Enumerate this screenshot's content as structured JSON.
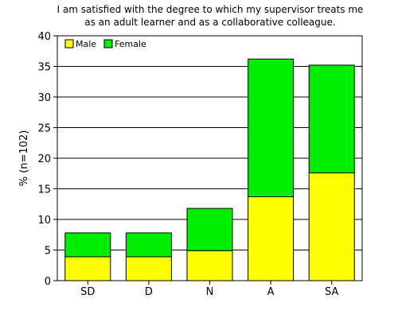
{
  "chart_data": {
    "type": "bar",
    "stacked": true,
    "title_lines": [
      "I am satisfied with the degree to which my supervisor treats me",
      "as an adult learner and as a collaborative colleague."
    ],
    "xlabel": "",
    "ylabel": "% (n=102)",
    "categories": [
      "SD",
      "D",
      "N",
      "A",
      "SA"
    ],
    "series": [
      {
        "name": "Male",
        "color": "#ffff00",
        "values": [
          3.9,
          3.9,
          4.9,
          13.7,
          17.6
        ]
      },
      {
        "name": "Female",
        "color": "#00ee00",
        "values": [
          3.9,
          3.9,
          6.9,
          22.5,
          17.6
        ]
      }
    ],
    "ylim": [
      0,
      40
    ],
    "yticks": [
      "0",
      "5",
      "10",
      "15",
      "20",
      "25",
      "30",
      "35",
      "40"
    ],
    "grid": true,
    "legend_position": "top-left"
  }
}
